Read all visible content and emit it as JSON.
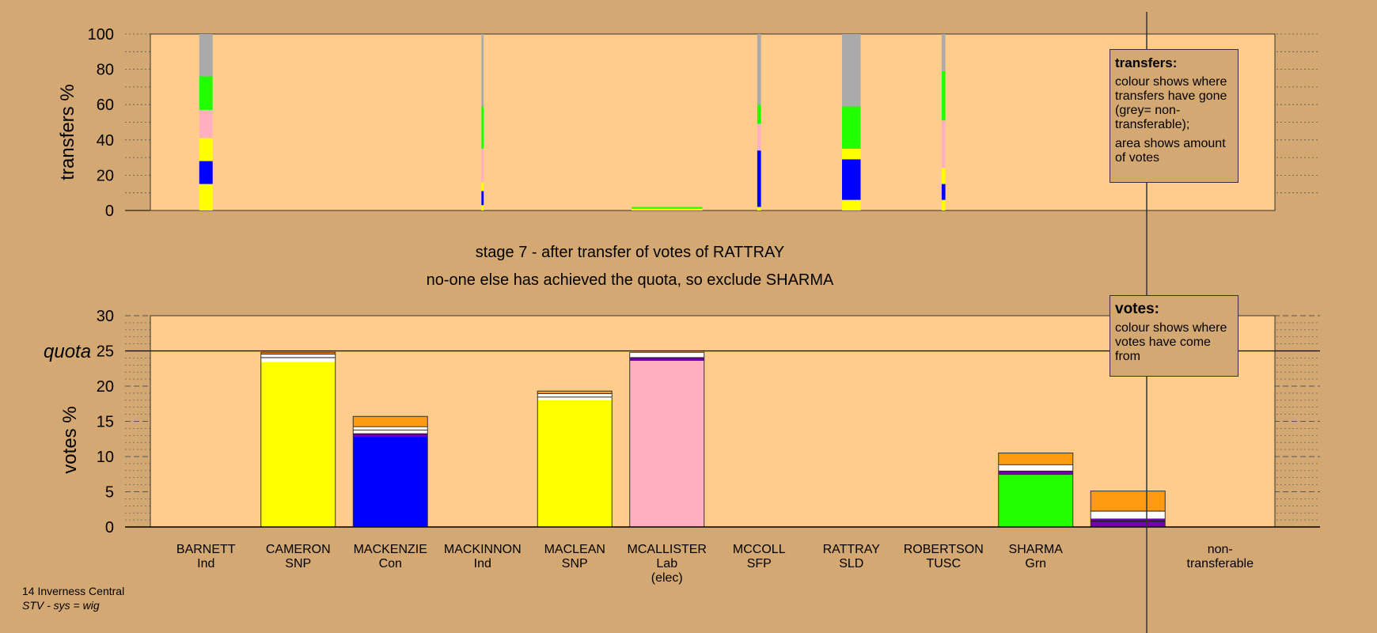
{
  "chart_data": [
    {
      "type": "bar",
      "name": "transfers",
      "ylabel": "transfers %",
      "ylim": [
        0,
        100
      ],
      "yticks": [
        0,
        20,
        40,
        60,
        80,
        100
      ],
      "categories": [
        "BARNETT Ind",
        "CAMERON SNP",
        "MACKENZIE Con",
        "MACKINNON Ind",
        "MACLEAN SNP",
        "MCALLISTER Lab (elec)",
        "MCCOLL SFP",
        "RATTRAY SLD",
        "ROBERTSON TUSC",
        "SHARMA Grn"
      ],
      "columns": [
        {
          "category": "BARNETT Ind",
          "width": 0.18,
          "segments": [
            [
              "yellow",
              15
            ],
            [
              "blue",
              13
            ],
            [
              "yellow",
              13
            ],
            [
              "pink",
              16
            ],
            [
              "green",
              19
            ],
            [
              "grey",
              24
            ]
          ]
        },
        {
          "category": "MACKINNON Ind",
          "width": 0.03,
          "segments": [
            [
              "yellow",
              3
            ],
            [
              "blue",
              8
            ],
            [
              "yellow",
              5
            ],
            [
              "pink",
              19
            ],
            [
              "green",
              24
            ],
            [
              "grey",
              41
            ]
          ]
        },
        {
          "category": "MCALLISTER Lab (elec)",
          "width": 0.95,
          "segments": [
            [
              "yellow",
              1
            ],
            [
              "green",
              1
            ]
          ]
        },
        {
          "category": "MCCOLL SFP",
          "width": 0.05,
          "segments": [
            [
              "yellow",
              2
            ],
            [
              "blue",
              32
            ],
            [
              "pink",
              15
            ],
            [
              "green",
              11
            ],
            [
              "grey",
              40
            ]
          ]
        },
        {
          "category": "RATTRAY SLD",
          "width": 0.25,
          "segments": [
            [
              "yellow",
              6
            ],
            [
              "blue",
              23
            ],
            [
              "yellow",
              6
            ],
            [
              "green",
              24
            ],
            [
              "grey",
              41
            ]
          ]
        },
        {
          "category": "ROBERTSON TUSC",
          "width": 0.05,
          "segments": [
            [
              "yellow",
              6
            ],
            [
              "blue",
              9
            ],
            [
              "yellow",
              9
            ],
            [
              "pink",
              27
            ],
            [
              "green",
              28
            ],
            [
              "grey",
              21
            ]
          ]
        }
      ],
      "note": {
        "title": "transfers:",
        "line1": "colour shows where transfers have gone (grey= non-transferable);",
        "line2": "area shows amount of votes"
      }
    },
    {
      "type": "bar",
      "name": "votes",
      "ylabel": "votes %",
      "ylim": [
        0,
        30
      ],
      "yticks": [
        0,
        5,
        10,
        15,
        20,
        25,
        30
      ],
      "quota": 25,
      "quota_label": "quota",
      "categories": [
        "BARNETT Ind",
        "CAMERON SNP",
        "MACKENZIE Con",
        "MACKINNON Ind",
        "MACLEAN SNP",
        "MCALLISTER Lab (elec)",
        "MCCOLL SFP",
        "RATTRAY SLD",
        "ROBERTSON TUSC",
        "SHARMA Grn",
        "non- transferable"
      ],
      "bars": [
        {
          "category": "BARNETT Ind",
          "segments": []
        },
        {
          "category": "CAMERON SNP",
          "segments": [
            [
              "yellow",
              23.4
            ],
            [
              "white",
              0.6
            ],
            [
              "black",
              0.1
            ],
            [
              "white",
              0.4
            ],
            [
              "black",
              0.1
            ],
            [
              "orange",
              0.2
            ]
          ]
        },
        {
          "category": "MACKENZIE Con",
          "segments": [
            [
              "blue",
              12.8
            ],
            [
              "purple",
              0.4
            ],
            [
              "black",
              0.1
            ],
            [
              "white",
              0.4
            ],
            [
              "black",
              0.1
            ],
            [
              "white",
              0.4
            ],
            [
              "black",
              0.1
            ],
            [
              "orange",
              1.4
            ]
          ]
        },
        {
          "category": "MACKINNON Ind",
          "segments": []
        },
        {
          "category": "MACLEAN SNP",
          "segments": [
            [
              "yellow",
              18.0
            ],
            [
              "white",
              0.4
            ],
            [
              "black",
              0.1
            ],
            [
              "white",
              0.4
            ],
            [
              "black",
              0.1
            ],
            [
              "orange",
              0.3
            ]
          ]
        },
        {
          "category": "MCALLISTER Lab (elec)",
          "segments": [
            [
              "pink",
              23.6
            ],
            [
              "purple",
              0.4
            ],
            [
              "black",
              0.1
            ],
            [
              "white",
              0.7
            ]
          ]
        },
        {
          "category": "MCCOLL SFP",
          "segments": []
        },
        {
          "category": "RATTRAY SLD",
          "segments": []
        },
        {
          "category": "ROBERTSON TUSC",
          "segments": []
        },
        {
          "category": "SHARMA Grn",
          "segments": [
            [
              "green",
              7.4
            ],
            [
              "purple",
              0.5
            ],
            [
              "black",
              0.1
            ],
            [
              "white",
              0.8
            ],
            [
              "black",
              0.1
            ],
            [
              "orange",
              1.6
            ]
          ]
        },
        {
          "category": "non- transferable",
          "segments": [
            [
              "purple",
              0.8
            ],
            [
              "black",
              0.1
            ],
            [
              "purple",
              0.3
            ],
            [
              "white",
              1.0
            ],
            [
              "black",
              0.1
            ],
            [
              "orange",
              2.8
            ]
          ]
        }
      ],
      "note": {
        "title": "votes:",
        "line1": "colour shows where votes have come from"
      }
    }
  ],
  "candidates": [
    {
      "name": "BARNETT",
      "party": "Ind",
      "extra": ""
    },
    {
      "name": "CAMERON",
      "party": "SNP",
      "extra": ""
    },
    {
      "name": "MACKENZIE",
      "party": "Con",
      "extra": ""
    },
    {
      "name": "MACKINNON",
      "party": "Ind",
      "extra": ""
    },
    {
      "name": "MACLEAN",
      "party": "SNP",
      "extra": ""
    },
    {
      "name": "MCALLISTER",
      "party": "Lab",
      "extra": "(elec)"
    },
    {
      "name": "MCCOLL",
      "party": "SFP",
      "extra": ""
    },
    {
      "name": "RATTRAY",
      "party": "SLD",
      "extra": ""
    },
    {
      "name": "ROBERTSON",
      "party": "TUSC",
      "extra": ""
    },
    {
      "name": "SHARMA",
      "party": "Grn",
      "extra": ""
    }
  ],
  "nontransferable_label": [
    "non-",
    "transferable"
  ],
  "stage_title": "stage 7 - after transfer of votes of RATTRAY",
  "stage_subtitle": "no-one else has achieved the quota, so exclude SHARMA",
  "footer": {
    "line1": "14 Inverness Central",
    "line2": "STV - sys = wig"
  },
  "colors": {
    "background": "#d4a872",
    "plot": "#ffcc8c",
    "yellow": "#ffff00",
    "blue": "#0000ff",
    "pink": "#ffb0c0",
    "green": "#22ff00",
    "grey": "#aaaaaa",
    "orange": "#ff9a10",
    "purple": "#7000b0",
    "white": "#ffffff",
    "black": "#000000"
  }
}
